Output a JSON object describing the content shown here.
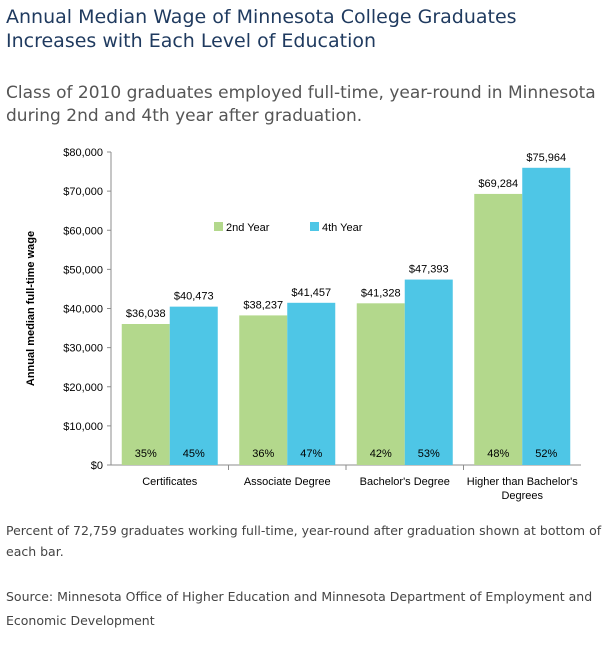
{
  "header": {
    "title": "Annual Median Wage of Minnesota College Graduates Increases with Each Level of Education",
    "subtitle": "Class of 2010 graduates employed full-time, year-round in Minnesota during 2nd and 4th year after graduation."
  },
  "footer": {
    "note": "Percent of 72,759 graduates working full-time, year-round after graduation shown at bottom of each bar.",
    "source": "Source: Minnesota Office of Higher Education and Minnesota Department of Employment and Economic Development"
  },
  "chart_data": {
    "type": "bar",
    "ylabel": "Annual median full-time wage",
    "ylim": [
      0,
      80000
    ],
    "yticks": [
      0,
      10000,
      20000,
      30000,
      40000,
      50000,
      60000,
      70000,
      80000
    ],
    "ytick_labels": [
      "$0",
      "$10,000",
      "$20,000",
      "$30,000",
      "$40,000",
      "$50,000",
      "$60,000",
      "$70,000",
      "$80,000"
    ],
    "categories": [
      "Certificates",
      "Associate Degree",
      "Bachelor's Degree",
      "Higher than Bachelor's Degrees"
    ],
    "category_label_lines": [
      [
        "Certificates"
      ],
      [
        "Associate Degree"
      ],
      [
        "Bachelor's Degree"
      ],
      [
        "Higher than Bachelor's",
        "Degrees"
      ]
    ],
    "series": [
      {
        "name": "2nd Year",
        "color": "#b3d88c",
        "values": [
          36038,
          38237,
          41328,
          69284
        ],
        "value_labels": [
          "$36,038",
          "$38,237",
          "$41,328",
          "$69,284"
        ],
        "percent_labels": [
          "35%",
          "36%",
          "42%",
          "48%"
        ]
      },
      {
        "name": "4th Year",
        "color": "#4ec6e6",
        "values": [
          40473,
          41457,
          47393,
          75964
        ],
        "value_labels": [
          "$40,473",
          "$41,457",
          "$47,393",
          "$75,964"
        ],
        "percent_labels": [
          "45%",
          "47%",
          "53%",
          "52%"
        ]
      }
    ],
    "legend": "inside-top-left",
    "grid": false
  }
}
